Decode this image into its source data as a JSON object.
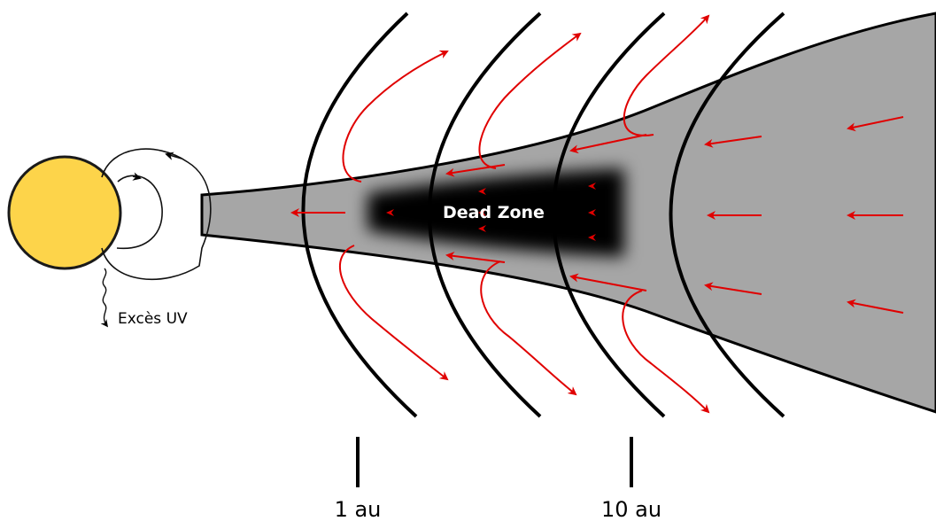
{
  "labels": {
    "uv": "Excès UV",
    "dead_zone": "Dead Zone",
    "au1": "1 au",
    "au10": "10 au"
  },
  "colors": {
    "star_fill": "#FDD44A",
    "star_stroke": "#1a1a1a",
    "disk": "#a6a6a6",
    "dead_zone": "#000000",
    "flow_arrows": "#e00000",
    "field_lines": "#000000"
  },
  "icons": {
    "star": "sun-disk",
    "arrow": "arrowhead"
  }
}
